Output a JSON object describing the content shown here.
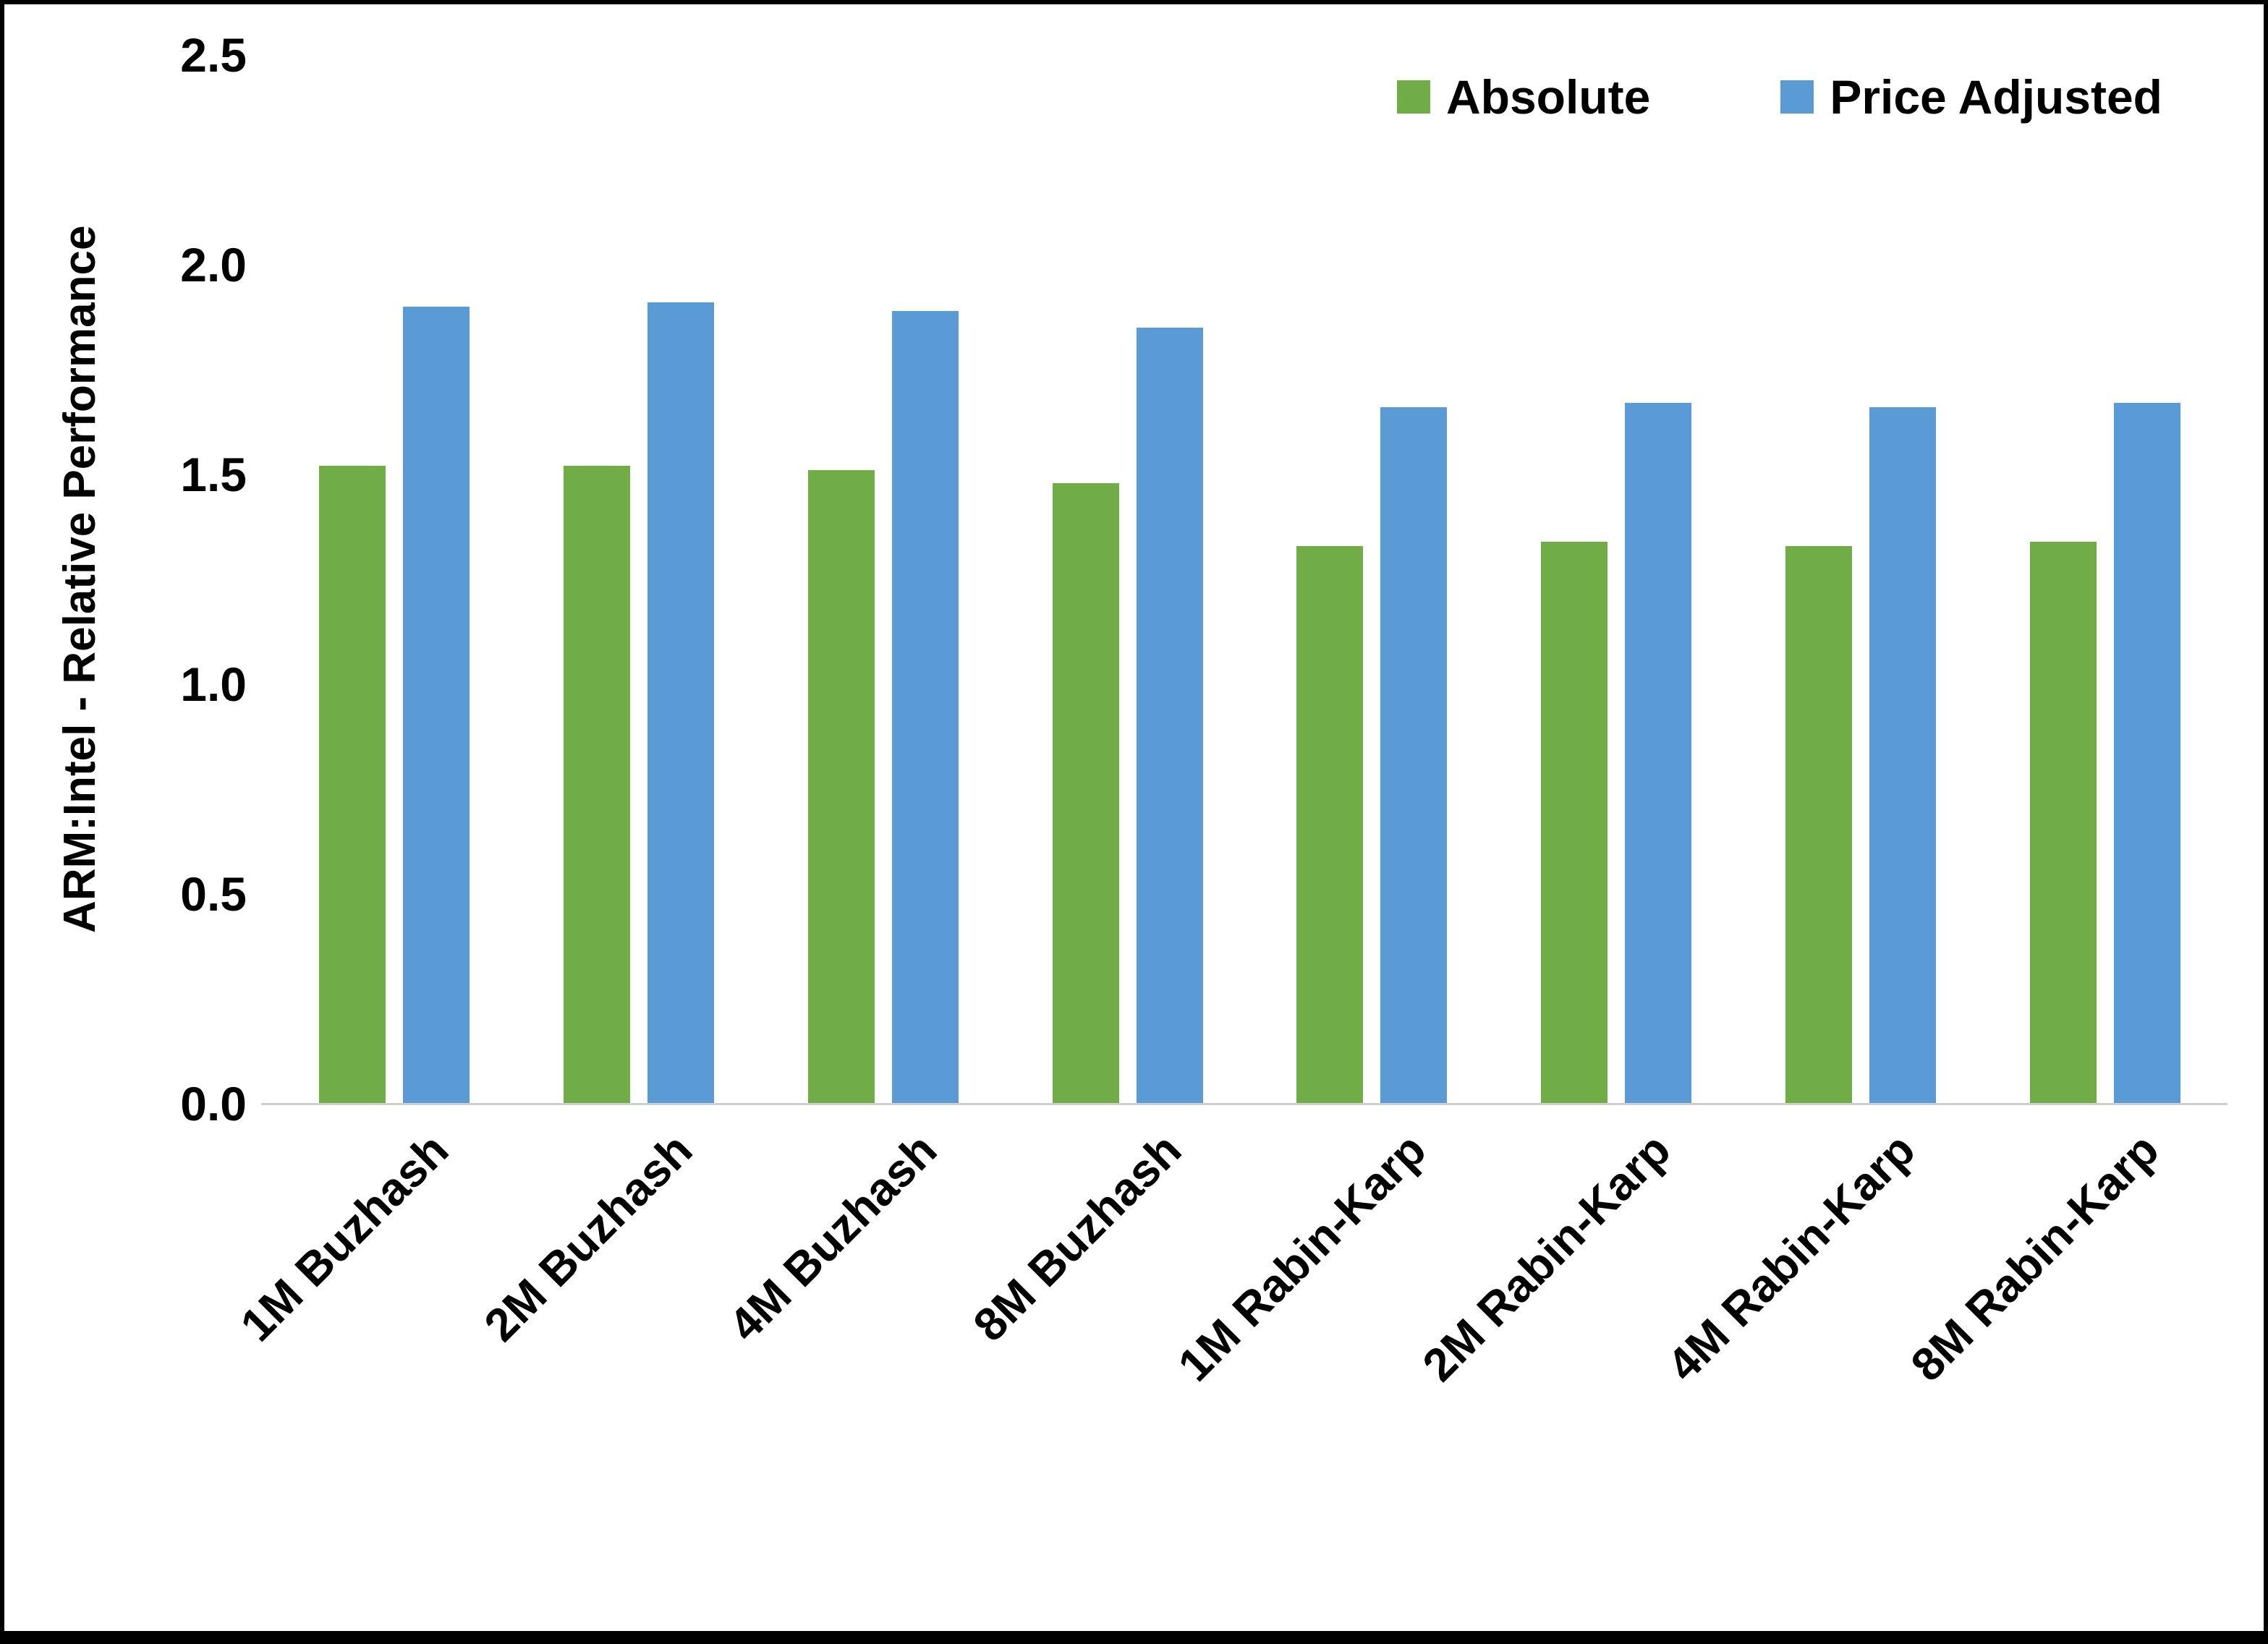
{
  "chart_data": {
    "type": "bar",
    "title": "",
    "xlabel": "",
    "ylabel": "ARM:Intel - Relative Performance",
    "ylim": [
      0,
      2.5
    ],
    "yticks": [
      0.0,
      0.5,
      1.0,
      1.5,
      2.0,
      2.5
    ],
    "ytick_labels": [
      "0.0",
      "0.5",
      "1.0",
      "1.5",
      "2.0",
      "2.5"
    ],
    "grid": false,
    "legend_position": "top-right",
    "categories": [
      "1M Buzhash",
      "2M Buzhash",
      "4M Buzhash",
      "8M Buzhash",
      "1M Rabin-Karp",
      "2M Rabin-Karp",
      "4M Rabin-Karp",
      "8M Rabin-Karp"
    ],
    "series": [
      {
        "name": "Absolute",
        "color": "#70AD47",
        "values": [
          1.52,
          1.52,
          1.51,
          1.48,
          1.33,
          1.34,
          1.33,
          1.34
        ]
      },
      {
        "name": "Price Adjusted",
        "color": "#5B9BD5",
        "values": [
          1.9,
          1.91,
          1.89,
          1.85,
          1.66,
          1.67,
          1.66,
          1.67
        ]
      }
    ]
  },
  "colors": {
    "absolute_green": "#70AD47",
    "price_adjusted_blue": "#5B9BD5",
    "axis_line": "#cfcfcf",
    "frame_border": "#000000"
  }
}
